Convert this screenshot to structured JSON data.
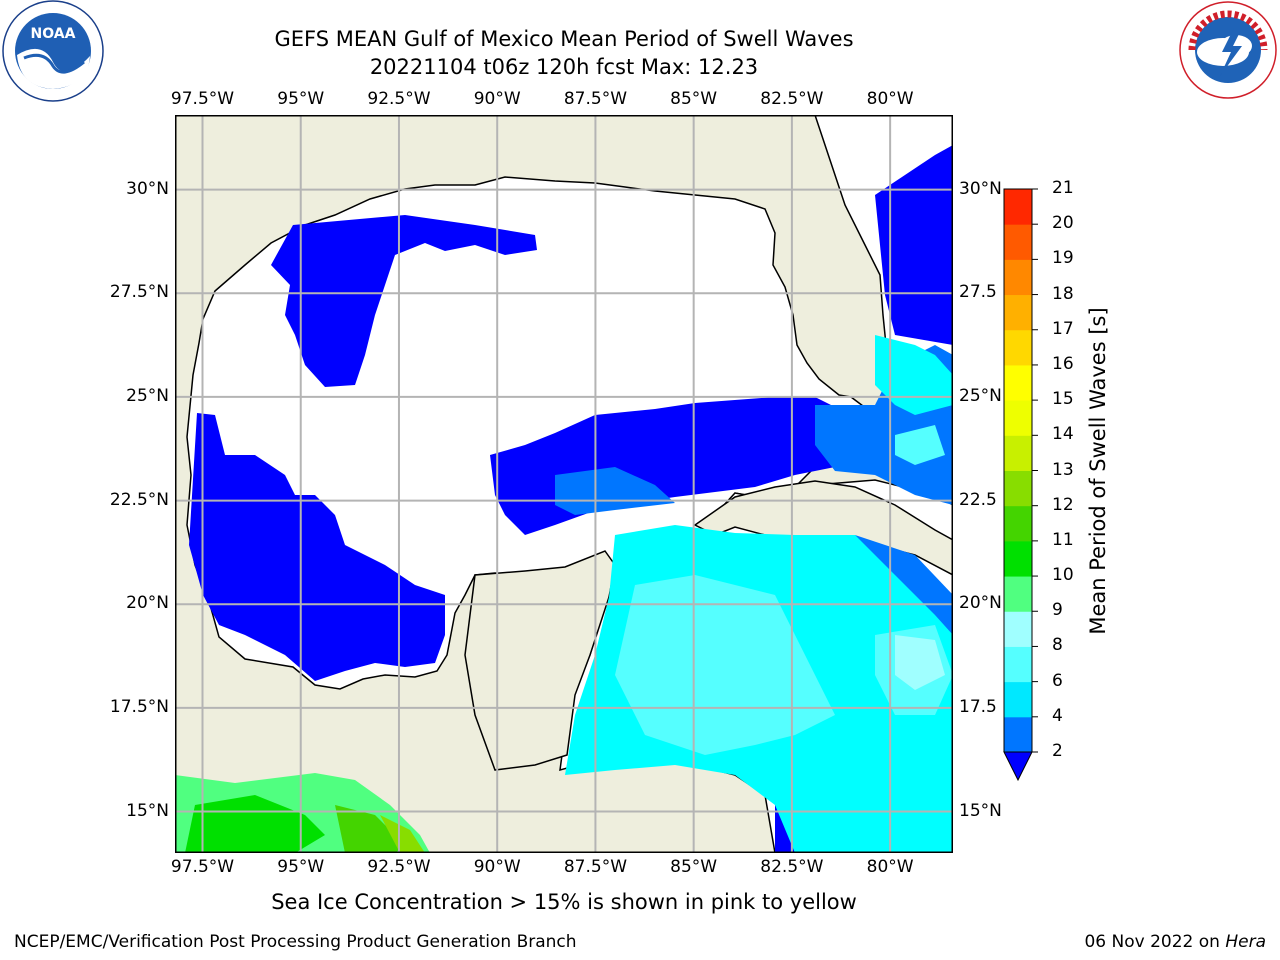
{
  "title": {
    "line1": "GEFS MEAN Gulf of Mexico Mean Period of Swell Waves",
    "line2": "20221104 t06z 120h fcst   Max: 12.23"
  },
  "logos": {
    "left": {
      "name": "noaa-logo",
      "text": "NOAA"
    },
    "right": {
      "name": "national-weather-service-logo",
      "text": "NATIONAL WEATHER SERVICE"
    }
  },
  "map": {
    "lon_labels": [
      "97.5°W",
      "95°W",
      "92.5°W",
      "90°W",
      "87.5°W",
      "85°W",
      "82.5°W",
      "80°W"
    ],
    "lat_labels_left": [
      "30°N",
      "27.5°N",
      "25°N",
      "22.5°N",
      "20°N",
      "17.5°N",
      "15°N"
    ],
    "lat_labels_right": [
      "30°N",
      "27.5",
      "25°N",
      "22.5",
      "20°N",
      "17.5",
      "15°N"
    ],
    "lon_values": [
      -97.5,
      -95,
      -92.5,
      -90,
      -87.5,
      -85,
      -82.5,
      -80
    ],
    "lat_values": [
      30,
      27.5,
      25,
      22.5,
      20,
      17.5,
      15
    ],
    "extent": {
      "lon": [
        -98.2,
        -78.4
      ],
      "lat": [
        14.0,
        31.8
      ]
    },
    "colors": {
      "land": "#eeeedd",
      "ocean_none": "#ffffff",
      "grid": "#b4b4b4",
      "coast": "#000000"
    }
  },
  "colorbar": {
    "label": "Mean Period of Swell Waves [s]",
    "tick_labels": [
      "2",
      "4",
      "6",
      "8",
      "9",
      "10",
      "11",
      "12",
      "13",
      "14",
      "15",
      "16",
      "17",
      "18",
      "19",
      "20",
      "21"
    ],
    "levels": [
      2,
      4,
      6,
      8,
      9,
      10,
      11,
      12,
      13,
      14,
      15,
      16,
      17,
      18,
      19,
      20,
      21
    ],
    "colors": [
      "#0076ff",
      "#00e8ff",
      "#55ffff",
      "#a0ffff",
      "#50ff80",
      "#00e000",
      "#44d400",
      "#88dd00",
      "#c8f000",
      "#eeff00",
      "#ffff00",
      "#ffd800",
      "#ffb000",
      "#ff8800",
      "#ff5a00",
      "#ff2800"
    ],
    "under_color": "#0000ff"
  },
  "note": "Sea Ice Concentration > 15% is shown in pink to yellow",
  "footer": {
    "credit": "NCEP/EMC/Verification Post Processing Product Generation Branch",
    "date": "06 Nov 2022 on ",
    "machine": "Hera"
  }
}
